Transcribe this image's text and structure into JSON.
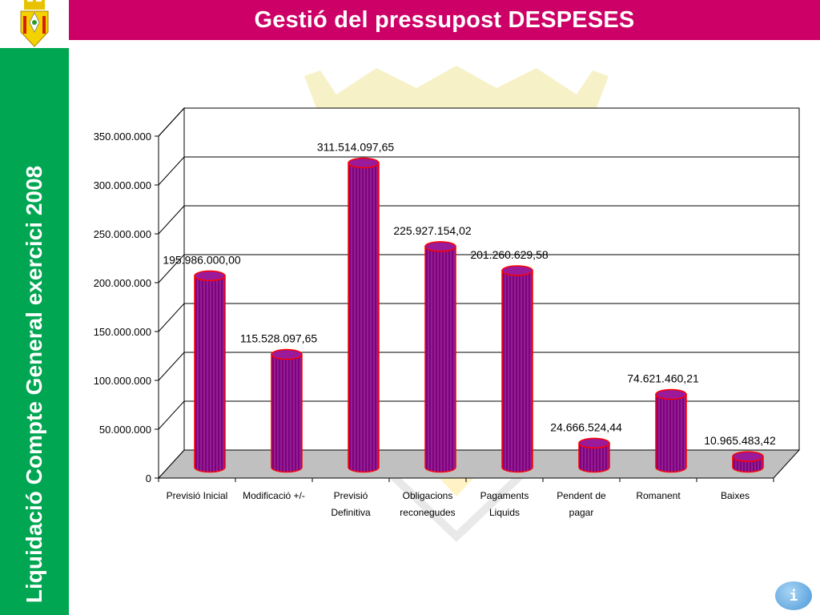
{
  "header": {
    "title": "Gestió del pressupost DESPESES"
  },
  "sidebar": {
    "text": "Liquidació Compte General exercici 2008"
  },
  "info_button": {
    "label": "i",
    "icon": "info-icon"
  },
  "colors": {
    "title_bar": "#cc0066",
    "sidebar": "#00a651",
    "bar_fill": "#800080",
    "bar_outline": "#ff0000",
    "floor": "#c0c0c0"
  },
  "chart_data": {
    "type": "bar",
    "style": "3d-cylinder",
    "categories": [
      [
        "Previsió Inicial"
      ],
      [
        "Modificació +/-"
      ],
      [
        "Previsió",
        "Definitiva"
      ],
      [
        "Obligacions",
        "reconegudes"
      ],
      [
        "Pagaments",
        "Liquids"
      ],
      [
        "Pendent de",
        "pagar"
      ],
      [
        "Romanent"
      ],
      [
        "Baixes"
      ]
    ],
    "values": [
      195986000.0,
      115528097.65,
      311514097.65,
      225927154.02,
      201260629.58,
      24666524.44,
      74621460.21,
      10965483.42
    ],
    "data_labels": [
      "195.986.000,00",
      "115.528.097,65",
      "311.514.097,65",
      "225.927.154,02",
      "201.260.629,58",
      "24.666.524,44",
      "74.621.460,21",
      "10.965.483,42"
    ],
    "yticks": [
      0,
      50000000,
      100000000,
      150000000,
      200000000,
      250000000,
      300000000,
      350000000
    ],
    "ytick_labels": [
      "0",
      "50.000.000",
      "100.000.000",
      "150.000.000",
      "200.000.000",
      "250.000.000",
      "300.000.000",
      "350.000.000"
    ],
    "ylim": [
      0,
      350000000
    ],
    "grid": true,
    "legend": false,
    "title": "",
    "xlabel": "",
    "ylabel": ""
  }
}
